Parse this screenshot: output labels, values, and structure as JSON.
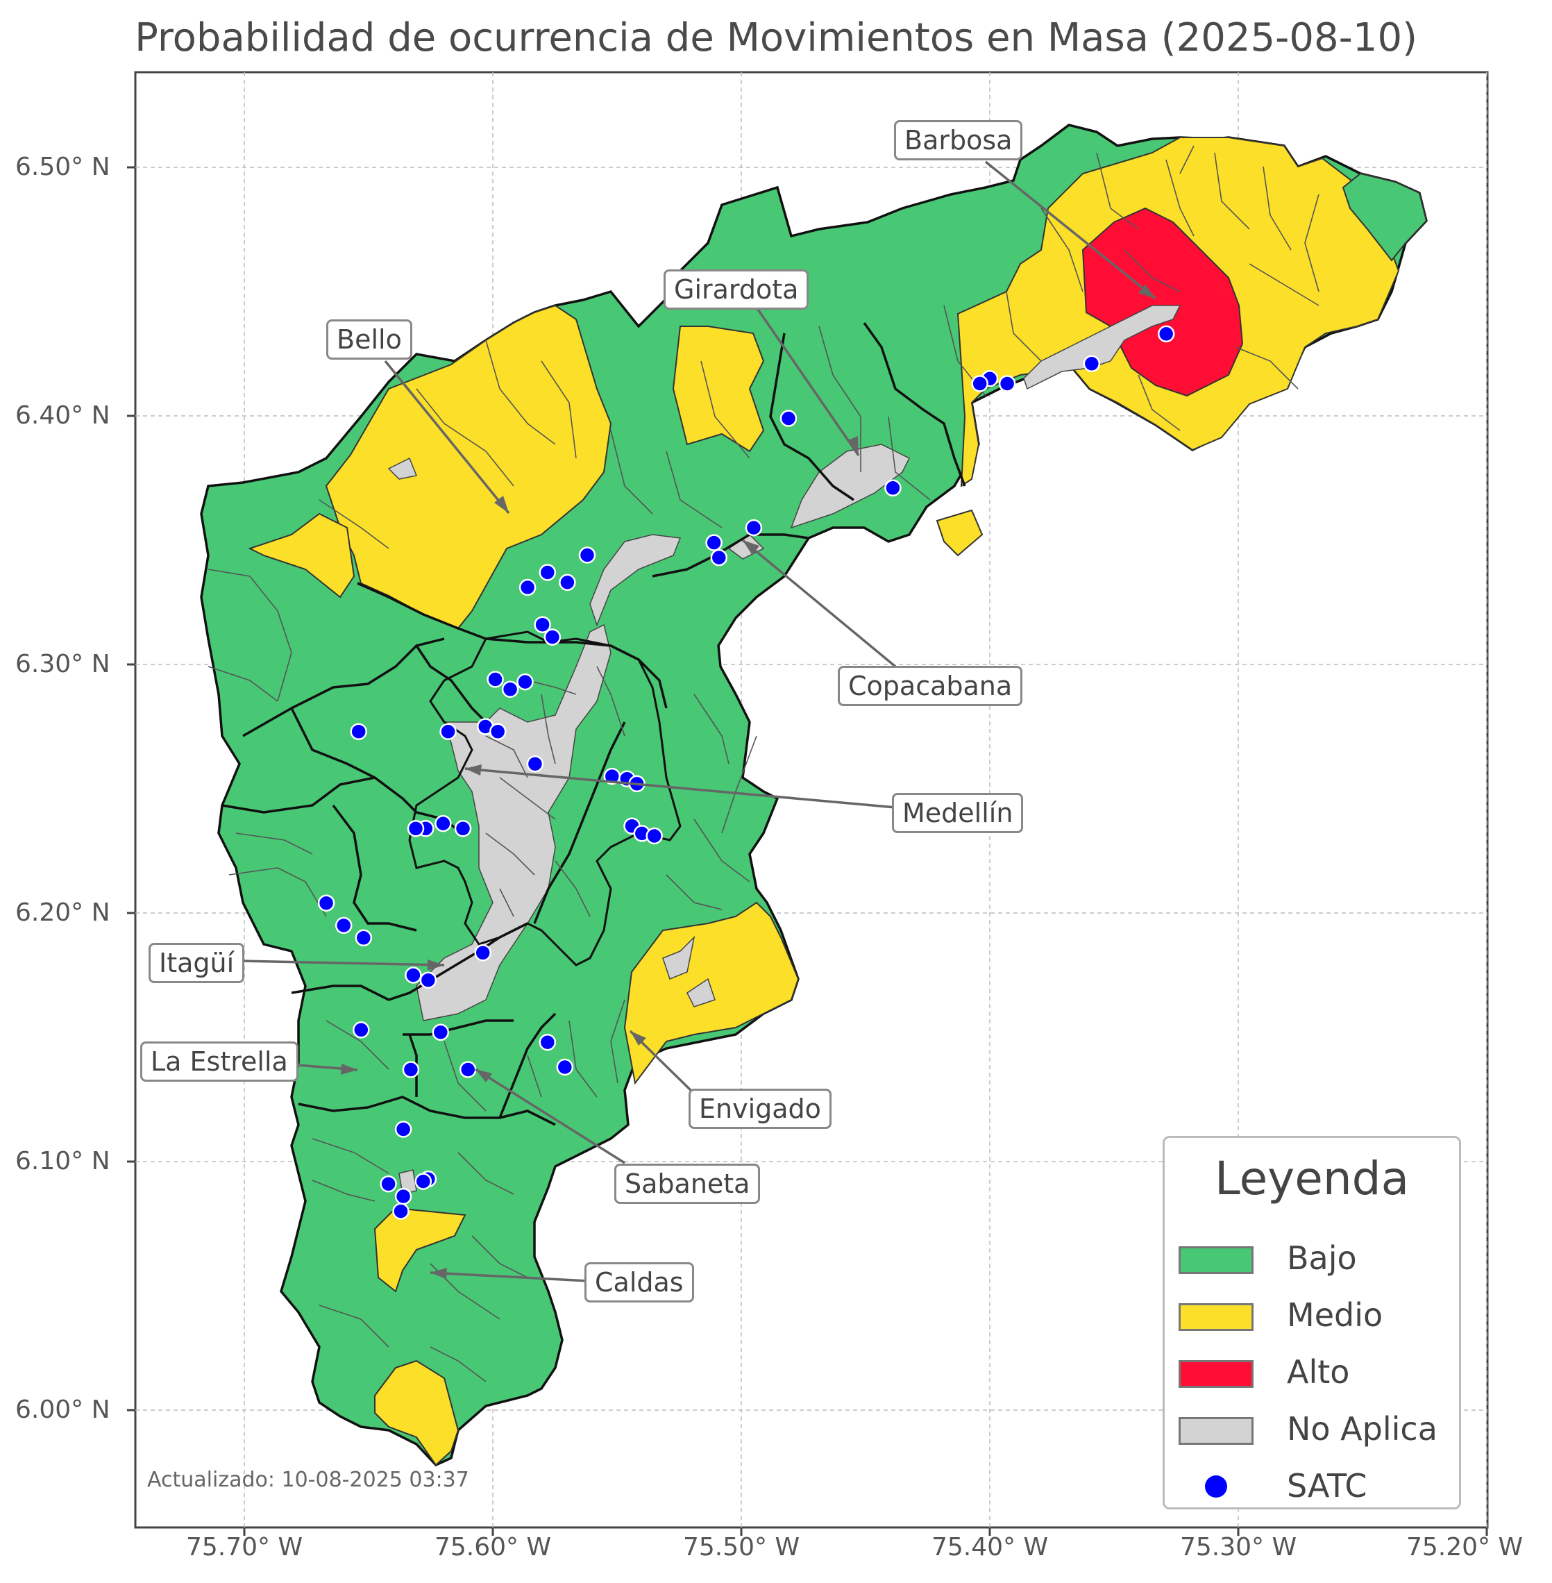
{
  "title": "Probabilidad de ocurrencia de Movimientos en Masa (2025-08-10)",
  "y_axis": {
    "ticks": [
      "6.50° N",
      "6.40° N",
      "6.30° N",
      "6.20° N",
      "6.10° N",
      "6.00° N"
    ]
  },
  "x_axis": {
    "ticks": [
      "75.70° W",
      "75.60° W",
      "75.50° W",
      "75.40° W",
      "75.30° W",
      "75.20° W"
    ]
  },
  "colors": {
    "bajo": "#48c774",
    "medio": "#fbdf28",
    "alto": "#ff0d35",
    "no_aplica": "#d3d3d3",
    "satc": "#0000ff",
    "border": "#111111",
    "sub_border": "#555555"
  },
  "municipalities": {
    "barbosa": "Barbosa",
    "girardota": "Girardota",
    "bello": "Bello",
    "copacabana": "Copacabana",
    "medellin": "Medellín",
    "itagui": "Itagüí",
    "la_estrella": "La Estrella",
    "envigado": "Envigado",
    "sabaneta": "Sabaneta",
    "caldas": "Caldas"
  },
  "legend": {
    "title": "Leyenda",
    "bajo": "Bajo",
    "medio": "Medio",
    "alto": "Alto",
    "no_aplica": "No Aplica",
    "satc": "SATC"
  },
  "updated": "Actualizado: 10-08-2025 03:37",
  "satc_stations": [
    {
      "lon": -75.329,
      "lat": 6.433
    },
    {
      "lon": -75.359,
      "lat": 6.421
    },
    {
      "lon": -75.393,
      "lat": 6.413
    },
    {
      "lon": -75.4,
      "lat": 6.415
    },
    {
      "lon": -75.404,
      "lat": 6.413
    },
    {
      "lon": -75.439,
      "lat": 6.371
    },
    {
      "lon": -75.481,
      "lat": 6.399
    },
    {
      "lon": -75.495,
      "lat": 6.355
    },
    {
      "lon": -75.511,
      "lat": 6.349
    },
    {
      "lon": -75.509,
      "lat": 6.343
    },
    {
      "lon": -75.562,
      "lat": 6.344
    },
    {
      "lon": -75.57,
      "lat": 6.333
    },
    {
      "lon": -75.578,
      "lat": 6.337
    },
    {
      "lon": -75.586,
      "lat": 6.331
    },
    {
      "lon": -75.58,
      "lat": 6.316
    },
    {
      "lon": -75.576,
      "lat": 6.311
    },
    {
      "lon": -75.599,
      "lat": 6.294
    },
    {
      "lon": -75.593,
      "lat": 6.29
    },
    {
      "lon": -75.587,
      "lat": 6.293
    },
    {
      "lon": -75.654,
      "lat": 6.273
    },
    {
      "lon": -75.618,
      "lat": 6.273
    },
    {
      "lon": -75.603,
      "lat": 6.275
    },
    {
      "lon": -75.598,
      "lat": 6.273
    },
    {
      "lon": -75.583,
      "lat": 6.26
    },
    {
      "lon": -75.552,
      "lat": 6.255
    },
    {
      "lon": -75.546,
      "lat": 6.254
    },
    {
      "lon": -75.542,
      "lat": 6.252
    },
    {
      "lon": -75.544,
      "lat": 6.235
    },
    {
      "lon": -75.54,
      "lat": 6.232
    },
    {
      "lon": -75.535,
      "lat": 6.231
    },
    {
      "lon": -75.62,
      "lat": 6.236
    },
    {
      "lon": -75.612,
      "lat": 6.234
    },
    {
      "lon": -75.627,
      "lat": 6.234
    },
    {
      "lon": -75.631,
      "lat": 6.234
    },
    {
      "lon": -75.667,
      "lat": 6.204
    },
    {
      "lon": -75.66,
      "lat": 6.195
    },
    {
      "lon": -75.652,
      "lat": 6.19
    },
    {
      "lon": -75.604,
      "lat": 6.184
    },
    {
      "lon": -75.632,
      "lat": 6.175
    },
    {
      "lon": -75.626,
      "lat": 6.173
    },
    {
      "lon": -75.653,
      "lat": 6.153
    },
    {
      "lon": -75.621,
      "lat": 6.152
    },
    {
      "lon": -75.578,
      "lat": 6.148
    },
    {
      "lon": -75.571,
      "lat": 6.138
    },
    {
      "lon": -75.61,
      "lat": 6.137
    },
    {
      "lon": -75.633,
      "lat": 6.137
    },
    {
      "lon": -75.636,
      "lat": 6.113
    },
    {
      "lon": -75.642,
      "lat": 6.091
    },
    {
      "lon": -75.626,
      "lat": 6.093
    },
    {
      "lon": -75.628,
      "lat": 6.092
    },
    {
      "lon": -75.636,
      "lat": 6.086
    },
    {
      "lon": -75.637,
      "lat": 6.08
    }
  ]
}
